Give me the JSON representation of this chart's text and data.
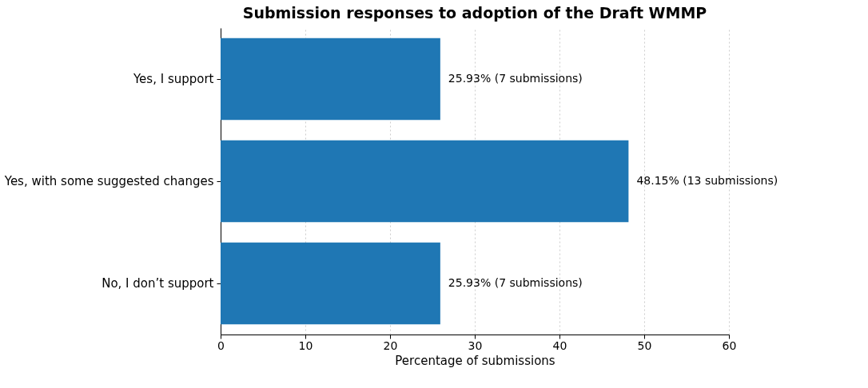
{
  "chart_data": {
    "type": "bar",
    "orientation": "horizontal",
    "title": "Submission responses to adoption of the Draft WMMP",
    "xlabel": "Percentage of submissions",
    "categories": [
      "Yes, I support",
      "Yes, with some suggested changes",
      "No, I don’t support"
    ],
    "values": [
      25.93,
      48.15,
      25.93
    ],
    "value_labels": [
      "25.93% (7 submissions)",
      "48.15% (13 submissions)",
      "25.93% (7 submissions)"
    ],
    "color": "#1f77b4",
    "xlim": [
      0,
      60
    ],
    "xticks": [
      0,
      10,
      20,
      30,
      40,
      50,
      60
    ],
    "grid": "x"
  }
}
